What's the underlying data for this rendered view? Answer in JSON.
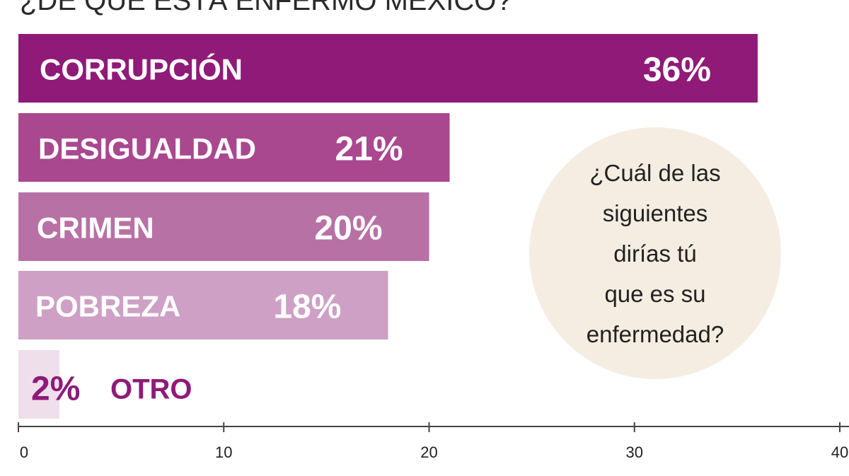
{
  "chart_data": {
    "type": "bar",
    "orientation": "horizontal",
    "title": "¿DE QUÉ ESTÁ ENFERMO MÉXICO?",
    "categories": [
      "CORRUPCIÓN",
      "DESIGUALDAD",
      "CRIMEN",
      "POBREZA",
      "OTRO"
    ],
    "values": [
      36,
      21,
      20,
      18,
      2
    ],
    "value_labels": [
      "36%",
      "21%",
      "20%",
      "18%",
      "2%"
    ],
    "bar_colors": [
      "#8f1a78",
      "#a9478f",
      "#b871a5",
      "#cea0c5",
      "#efdfeb"
    ],
    "xlim": [
      0,
      40
    ],
    "xticks": [
      0,
      10,
      20,
      30,
      40
    ],
    "xtick_labels": [
      "0",
      "10",
      "20",
      "30",
      "40"
    ],
    "xlabel": "",
    "ylabel": "",
    "grid": false,
    "legend": "none",
    "annotation": {
      "lines": [
        "¿Cuál de las",
        "siguientes",
        "dirías tú",
        "que es su",
        "enfermedad?"
      ],
      "background": "#f5ede1"
    },
    "small_value_color": "#8f1a78"
  }
}
